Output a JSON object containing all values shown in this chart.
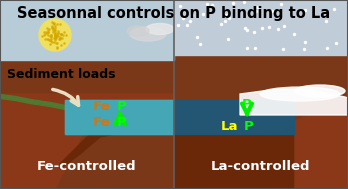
{
  "title": "Seasonnal controls on P binding to La",
  "title_fontsize": 10.5,
  "title_color": "#000000",
  "title_fontweight": "bold",
  "sky_left_color": "#b8ccd8",
  "sky_right_color": "#c0ccd8",
  "water_left_color": "#45a8b8",
  "water_right_color": "#1e5878",
  "sediment_dark": "#6a2808",
  "sediment_mid": "#8a3818",
  "sediment_light": "#a04020",
  "grass_color": "#507830",
  "label_left": "Fe-controlled",
  "label_right": "La-controlled",
  "label_fontsize": 9.5,
  "label_color": "#ffffff",
  "label_fontweight": "bold",
  "fe_color": "#c87820",
  "p_color": "#00ff00",
  "la_color": "#ffff00",
  "arrow_up_color": "#00ee00",
  "arrow_down_color": "#00ee00",
  "sediment_label": "Sediment loads",
  "sediment_label_fontsize": 9,
  "sediment_label_color": "#000000",
  "sediment_label_fontweight": "bold",
  "sun_color": "#f0e060",
  "sun_dot_color": "#d4a800",
  "white_arrow_color": "#e8dfc0",
  "snow_color": "#ffffff",
  "border_color": "#555555",
  "bottom_bg_color": "#7a3818"
}
